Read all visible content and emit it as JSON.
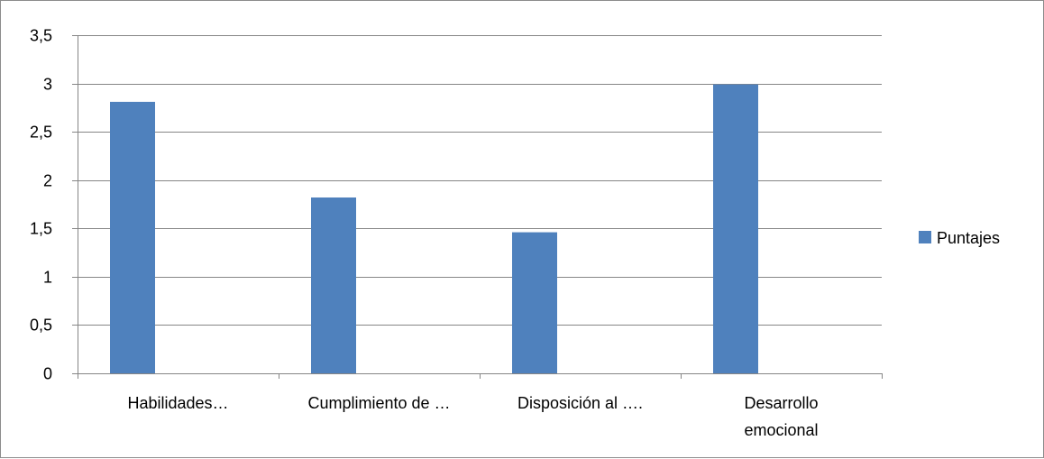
{
  "chart_data": {
    "type": "bar",
    "categories": [
      [
        "Habilidades…"
      ],
      [
        "Cumplimiento de …"
      ],
      [
        "Disposición al …."
      ],
      [
        "Desarrollo",
        "emocional"
      ]
    ],
    "series": [
      {
        "name": "Puntajes",
        "values": [
          2.81,
          1.82,
          1.46,
          2.99
        ],
        "color": "#4f81bd"
      }
    ],
    "ylim": [
      0,
      3.5
    ],
    "ytick_values": [
      0,
      0.5,
      1,
      1.5,
      2,
      2.5,
      3,
      3.5
    ],
    "ytick_labels": [
      "0",
      "0,5",
      "1",
      "1,5",
      "2",
      "2,5",
      "3",
      "3,5"
    ],
    "grid": true,
    "gridline_color": "#868686",
    "legend_position": "right",
    "title": "",
    "xlabel": "",
    "ylabel": ""
  }
}
